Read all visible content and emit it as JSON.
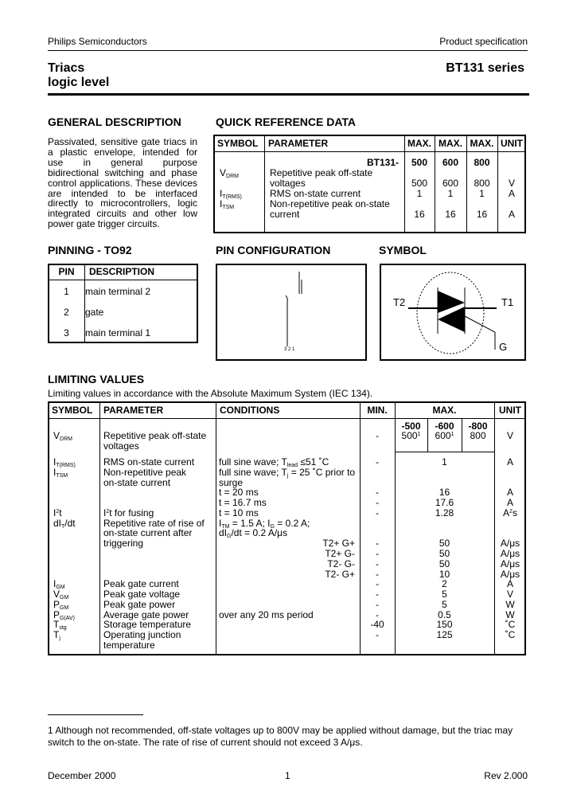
{
  "header": {
    "company": "Philips Semiconductors",
    "doc_type": "Product specification",
    "title_line1": "Triacs",
    "title_line2": "logic level",
    "series": "BT131 series"
  },
  "general_description": {
    "heading": "GENERAL DESCRIPTION",
    "text": "Passivated, sensitive gate triacs in a plastic envelope, intended for use in general purpose bidirectional switching and phase control applications. These devices are intended to be interfaced directly to microcontrollers, logic integrated circuits and other low power gate trigger circuits."
  },
  "quick_reference": {
    "heading": "QUICK REFERENCE DATA",
    "columns": [
      "SYMBOL",
      "PARAMETER",
      "MAX.",
      "MAX.",
      "MAX.",
      "UNIT"
    ],
    "lines": [
      {
        "sym": "",
        "param": "BT131-",
        "v": [
          "500",
          "600",
          "800"
        ],
        "unit": "",
        "bold": true
      },
      {
        "sym": "V_{DRM}",
        "param": "Repetitive peak off-state",
        "v": [
          "",
          "",
          ""
        ],
        "unit": ""
      },
      {
        "sym": "",
        "param": "voltages",
        "v": [
          "500",
          "600",
          "800"
        ],
        "unit": "V"
      },
      {
        "sym": "I_{T(RMS)}",
        "param": "RMS on-state current",
        "v": [
          "1",
          "1",
          "1"
        ],
        "unit": "A"
      },
      {
        "sym": "I_{TSM}",
        "param": "Non-repetitive peak on-state",
        "v": [
          "",
          "",
          ""
        ],
        "unit": ""
      },
      {
        "sym": "",
        "param": "current",
        "v": [
          "16",
          "16",
          "16"
        ],
        "unit": "A"
      }
    ]
  },
  "pinning": {
    "heading": "PINNING - TO92",
    "columns": [
      "PIN",
      "DESCRIPTION"
    ],
    "rows": [
      {
        "pin": "1",
        "desc": "main terminal 2"
      },
      {
        "pin": "2",
        "desc": "gate"
      },
      {
        "pin": "3",
        "desc": "main terminal 1"
      }
    ]
  },
  "pin_configuration": {
    "heading": "PIN CONFIGURATION",
    "pin_labels": "3 2 1"
  },
  "symbol": {
    "heading": "SYMBOL",
    "t2": "T2",
    "t1": "T1",
    "g": "G"
  },
  "limiting_values": {
    "heading": "LIMITING VALUES",
    "subtitle": "Limiting values in accordance with the Absolute Maximum System (IEC 134).",
    "columns": [
      "SYMBOL",
      "PARAMETER",
      "CONDITIONS",
      "MIN.",
      "MAX.",
      "UNIT"
    ],
    "voltage_row": {
      "sym": "V_{DRM}",
      "param": [
        "Repetitive peak off-state",
        "voltages"
      ],
      "min": "-",
      "grades": [
        "-500",
        "-600",
        "-800"
      ],
      "values": [
        "500^{1}",
        "600^{1}",
        "800"
      ],
      "unit": "V"
    },
    "lines": [
      {
        "sym": "I_{T(RMS)}",
        "param": "RMS on-state current",
        "cond": "full sine wave; T_{lead} ≤51 ˚C",
        "min": "-",
        "max": "1",
        "unit": "A"
      },
      {
        "sym": "I_{TSM}",
        "param": "Non-repetitive peak",
        "cond": "full sine wave; T_{j} = 25 ˚C prior to"
      },
      {
        "param": "on-state current",
        "cond": "surge"
      },
      {
        "cond": "t = 20 ms",
        "min": "-",
        "max": "16",
        "unit": "A"
      },
      {
        "cond": "t = 16.7 ms",
        "min": "-",
        "max": "17.6",
        "unit": "A"
      },
      {
        "sym": "I^{2}t",
        "param": "I^{2}t for fusing",
        "cond": "t = 10 ms",
        "min": "-",
        "max": "1.28",
        "unit": "A^{2}s"
      },
      {
        "sym": "dI_{T}/dt",
        "param": "Repetitive rate of rise of",
        "cond": "I_{TM} = 1.5 A; I_{G} = 0.2 A;"
      },
      {
        "param": "on-state current after",
        "cond": "dI_{G}/dt = 0.2 A/μs"
      },
      {
        "param": "triggering",
        "quad": "T2+ G+",
        "min": "-",
        "max": "50",
        "unit": "A/μs"
      },
      {
        "quad": "T2+ G-",
        "min": "-",
        "max": "50",
        "unit": "A/μs"
      },
      {
        "quad": "T2- G-",
        "min": "-",
        "max": "50",
        "unit": "A/μs"
      },
      {
        "quad": "T2- G+",
        "min": "-",
        "max": "10",
        "unit": "A/μs"
      },
      {
        "sym": "I_{GM}",
        "param": "Peak gate current",
        "min": "-",
        "max": "2",
        "unit": "A"
      },
      {
        "sym": "V_{GM}",
        "param": "Peak gate voltage",
        "min": "-",
        "max": "5",
        "unit": "V"
      },
      {
        "sym": "P_{GM}",
        "param": "Peak gate power",
        "min": "-",
        "max": "5",
        "unit": "W"
      },
      {
        "sym": "P_{G(AV)}",
        "param": "Average gate power",
        "cond": "over any 20 ms period",
        "min": "-",
        "max": "0.5",
        "unit": "W"
      },
      {
        "sym": "T_{stg}",
        "param": "Storage temperature",
        "min": "-40",
        "max": "150",
        "unit": "˚C"
      },
      {
        "sym": "T_{j}",
        "param": "Operating junction",
        "min": "-",
        "max": "125",
        "unit": "˚C"
      },
      {
        "param": "temperature"
      }
    ]
  },
  "footnote": {
    "line1": "1 Although not recommended, off-state voltages up to 800V may be applied without damage, but the triac may",
    "line2": "switch to the on-state. The rate of rise of current should not exceed 3 A/μs."
  },
  "footer": {
    "date": "December 2000",
    "page": "1",
    "revision": "Rev 2.000"
  }
}
